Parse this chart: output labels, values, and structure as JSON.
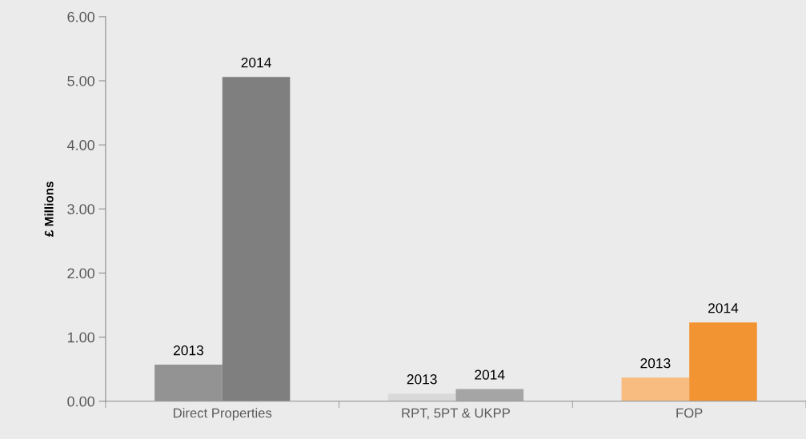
{
  "chart_data": {
    "type": "bar",
    "ylabel": "£ Millions",
    "categories": [
      "Direct Properties",
      "RPT, 5PT & UKPP",
      "FOP"
    ],
    "series": [
      {
        "name": "2013",
        "colors": [
          "#939393",
          "#d9d9d9",
          "#f8bc80"
        ],
        "values": [
          0.57,
          0.12,
          0.37
        ]
      },
      {
        "name": "2014",
        "colors": [
          "#7f7f7f",
          "#a5a5a5",
          "#f39433"
        ],
        "values": [
          5.06,
          0.19,
          1.23
        ]
      }
    ],
    "ylim": [
      0,
      6
    ],
    "yticks": [
      {
        "value": 0,
        "label": "0.00"
      },
      {
        "value": 1,
        "label": "1.00"
      },
      {
        "value": 2,
        "label": "2.00"
      },
      {
        "value": 3,
        "label": "3.00"
      },
      {
        "value": 4,
        "label": "4.00"
      },
      {
        "value": 5,
        "label": "5.00"
      },
      {
        "value": 6,
        "label": "6.00"
      }
    ],
    "grid": false,
    "legend": false
  }
}
